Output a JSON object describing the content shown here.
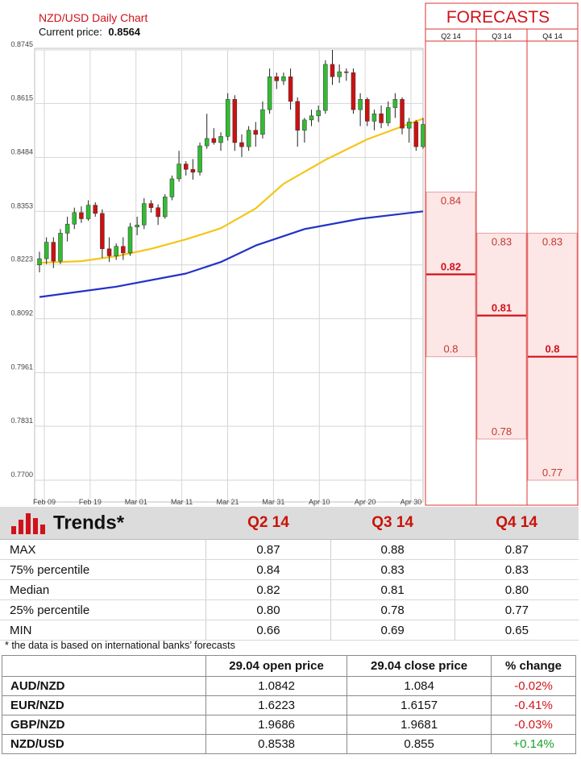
{
  "chart_data": {
    "type": "line",
    "title": "NZD/USD Daily Chart",
    "subtitle_label": "Current price:",
    "current_price": "0.8564",
    "y_ticks": [
      "0.8745",
      "0.8615",
      "0.8484",
      "0.8353",
      "0.8223",
      "0.8092",
      "0.7961",
      "0.7831",
      "0.7700"
    ],
    "x_ticks": [
      "Feb 09",
      "Feb 19",
      "Mar 01",
      "Mar 11",
      "Mar 21",
      "Mar 31",
      "Apr 10",
      "Apr 20",
      "Apr 30"
    ],
    "ylim": [
      0.77,
      0.8745
    ],
    "candles": [
      [
        0.8223,
        0.8255,
        0.8205,
        0.8238
      ],
      [
        0.8238,
        0.829,
        0.8225,
        0.8278
      ],
      [
        0.8278,
        0.829,
        0.8215,
        0.8232
      ],
      [
        0.8232,
        0.831,
        0.8225,
        0.83
      ],
      [
        0.83,
        0.834,
        0.828,
        0.8322
      ],
      [
        0.8322,
        0.8362,
        0.831,
        0.835
      ],
      [
        0.835,
        0.8365,
        0.8325,
        0.8335
      ],
      [
        0.8335,
        0.838,
        0.833,
        0.8368
      ],
      [
        0.8368,
        0.8375,
        0.834,
        0.8348
      ],
      [
        0.8348,
        0.8358,
        0.824,
        0.8262
      ],
      [
        0.8262,
        0.829,
        0.823,
        0.8245
      ],
      [
        0.8245,
        0.8275,
        0.8235,
        0.8268
      ],
      [
        0.8268,
        0.829,
        0.8235,
        0.8252
      ],
      [
        0.8252,
        0.8325,
        0.8245,
        0.8315
      ],
      [
        0.8315,
        0.834,
        0.8295,
        0.832
      ],
      [
        0.832,
        0.8385,
        0.831,
        0.8372
      ],
      [
        0.8372,
        0.838,
        0.835,
        0.8362
      ],
      [
        0.8362,
        0.837,
        0.832,
        0.834
      ],
      [
        0.834,
        0.8395,
        0.8335,
        0.8388
      ],
      [
        0.8388,
        0.844,
        0.838,
        0.8432
      ],
      [
        0.8432,
        0.85,
        0.8425,
        0.8468
      ],
      [
        0.8468,
        0.8475,
        0.844,
        0.8455
      ],
      [
        0.8455,
        0.848,
        0.843,
        0.8448
      ],
      [
        0.8448,
        0.852,
        0.844,
        0.8512
      ],
      [
        0.8512,
        0.859,
        0.8505,
        0.853
      ],
      [
        0.853,
        0.8555,
        0.8515,
        0.852
      ],
      [
        0.852,
        0.8545,
        0.85,
        0.8535
      ],
      [
        0.8535,
        0.864,
        0.8525,
        0.8625
      ],
      [
        0.8625,
        0.8635,
        0.85,
        0.852
      ],
      [
        0.852,
        0.854,
        0.8485,
        0.851
      ],
      [
        0.851,
        0.856,
        0.85,
        0.855
      ],
      [
        0.855,
        0.857,
        0.851,
        0.854
      ],
      [
        0.854,
        0.862,
        0.853,
        0.86
      ],
      [
        0.86,
        0.87,
        0.859,
        0.868
      ],
      [
        0.868,
        0.869,
        0.865,
        0.867
      ],
      [
        0.867,
        0.869,
        0.866,
        0.868
      ],
      [
        0.868,
        0.87,
        0.86,
        0.862
      ],
      [
        0.862,
        0.863,
        0.851,
        0.855
      ],
      [
        0.855,
        0.858,
        0.852,
        0.8575
      ],
      [
        0.8575,
        0.86,
        0.856,
        0.8585
      ],
      [
        0.8585,
        0.861,
        0.857,
        0.8598
      ],
      [
        0.8598,
        0.872,
        0.859,
        0.871
      ],
      [
        0.871,
        0.8745,
        0.866,
        0.868
      ],
      [
        0.868,
        0.871,
        0.8665,
        0.8692
      ],
      [
        0.8692,
        0.87,
        0.867,
        0.869
      ],
      [
        0.869,
        0.87,
        0.859,
        0.86
      ],
      [
        0.86,
        0.864,
        0.856,
        0.8625
      ],
      [
        0.8625,
        0.863,
        0.856,
        0.8572
      ],
      [
        0.8572,
        0.86,
        0.855,
        0.859
      ],
      [
        0.859,
        0.861,
        0.8555,
        0.8568
      ],
      [
        0.8568,
        0.862,
        0.856,
        0.8605
      ],
      [
        0.8605,
        0.864,
        0.858,
        0.8625
      ],
      [
        0.8625,
        0.863,
        0.854,
        0.8555
      ],
      [
        0.8555,
        0.858,
        0.852,
        0.857
      ],
      [
        0.857,
        0.8575,
        0.85,
        0.851
      ],
      [
        0.851,
        0.858,
        0.8505,
        0.8564
      ]
    ],
    "ma_fast": [
      [
        0,
        0.8228
      ],
      [
        6,
        0.8232
      ],
      [
        11,
        0.8244
      ],
      [
        16,
        0.8262
      ],
      [
        21,
        0.8285
      ],
      [
        26,
        0.8312
      ],
      [
        31,
        0.836
      ],
      [
        35,
        0.842
      ],
      [
        41,
        0.8478
      ],
      [
        47,
        0.8528
      ],
      [
        55,
        0.8578
      ]
    ],
    "ma_slow": [
      [
        0,
        0.8145
      ],
      [
        11,
        0.817
      ],
      [
        21,
        0.8202
      ],
      [
        26,
        0.823
      ],
      [
        31,
        0.827
      ],
      [
        38,
        0.831
      ],
      [
        46,
        0.8335
      ],
      [
        55,
        0.8353
      ]
    ],
    "ma_fast_color": "#f5c518",
    "ma_slow_color": "#2332c8",
    "bull_color": "#33bb33",
    "bear_color": "#cc1111",
    "forecasts": {
      "title": "FORECASTS",
      "columns": [
        {
          "label": "Q2 14",
          "max": "0.84",
          "median": "0.82",
          "min": "0.8",
          "v_max": 0.84,
          "v_median": 0.82,
          "v_min": 0.8
        },
        {
          "label": "Q3 14",
          "max": "0.83",
          "median": "0.81",
          "min": "0.78",
          "v_max": 0.83,
          "v_median": 0.81,
          "v_min": 0.78
        },
        {
          "label": "Q4 14",
          "max": "0.83",
          "median": "0.8",
          "min": "0.77",
          "v_max": 0.83,
          "v_median": 0.8,
          "v_min": 0.77
        }
      ],
      "band_color": "#fde6e6",
      "accent_color": "#d0121a"
    }
  },
  "trends": {
    "title": "Trends*",
    "columns": [
      "Q2 14",
      "Q3 14",
      "Q4 14"
    ],
    "rows": [
      {
        "label": "MAX",
        "values": [
          "0.87",
          "0.88",
          "0.87"
        ]
      },
      {
        "label": "75% percentile",
        "values": [
          "0.84",
          "0.83",
          "0.83"
        ]
      },
      {
        "label": "Median",
        "values": [
          "0.82",
          "0.81",
          "0.80"
        ]
      },
      {
        "label": "25% percentile",
        "values": [
          "0.80",
          "0.78",
          "0.77"
        ]
      },
      {
        "label": "MIN",
        "values": [
          "0.66",
          "0.69",
          "0.65"
        ]
      }
    ]
  },
  "note": "* the data is based on international banks’ forecasts",
  "fx_table": {
    "headers": [
      "",
      "29.04 open price",
      "29.04 close price",
      "% change"
    ],
    "rows": [
      {
        "pair": "AUD/NZD",
        "open": "1.0842",
        "close": "1.084",
        "change": "-0.02%",
        "dir": "neg"
      },
      {
        "pair": "EUR/NZD",
        "open": "1.6223",
        "close": "1.6157",
        "change": "-0.41%",
        "dir": "neg"
      },
      {
        "pair": "GBP/NZD",
        "open": "1.9686",
        "close": "1.9681",
        "change": "-0.03%",
        "dir": "neg"
      },
      {
        "pair": "NZD/USD",
        "open": "0.8538",
        "close": "0.855",
        "change": "+0.14%",
        "dir": "pos"
      }
    ]
  }
}
